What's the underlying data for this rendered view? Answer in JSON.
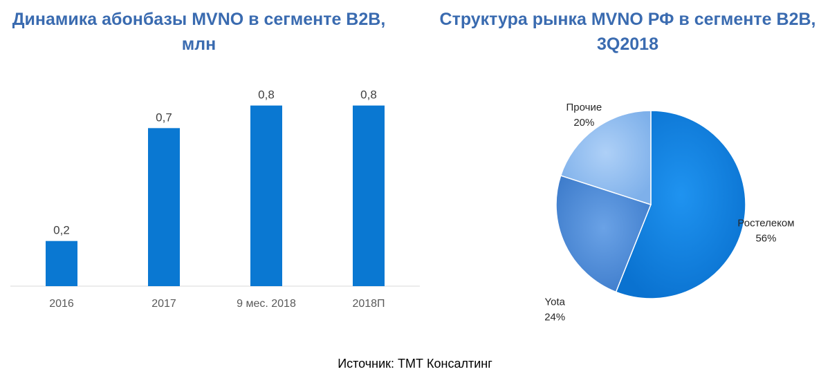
{
  "bar_chart": {
    "title_line1": "Динамика абонбазы MVNO в сегменте B2B,",
    "title_line2": "млн"
  },
  "pie_chart": {
    "title_line1": "Структура рынка MVNO РФ в сегменте B2B,",
    "title_line2": "3Q2018"
  },
  "source": "Источник: ТМТ Консалтинг",
  "colors": {
    "bar": "#0a78d2",
    "title": "#3a6bb0",
    "slice_rostelecom": "#0a7fe0",
    "slice_yota": "#4a86d6",
    "slice_other": "#8cbaf0"
  },
  "chart_data": [
    {
      "type": "bar",
      "title": "Динамика абонбазы MVNO в сегменте B2B, млн",
      "categories": [
        "2016",
        "2017",
        "9 мес. 2018",
        "2018П"
      ],
      "values": [
        0.2,
        0.7,
        0.8,
        0.8
      ],
      "data_labels": [
        "0,2",
        "0,7",
        "0,8",
        "0,8"
      ],
      "ylim": [
        0,
        0.9
      ],
      "grid": false,
      "legend": "none"
    },
    {
      "type": "pie",
      "title": "Структура рынка MVNO РФ в сегменте B2B, 3Q2018",
      "slices": [
        {
          "name": "Ростелеком",
          "value": 56,
          "label": "56%"
        },
        {
          "name": "Yota",
          "value": 24,
          "label": "24%"
        },
        {
          "name": "Прочие",
          "value": 20,
          "label": "20%"
        }
      ],
      "legend": "none"
    }
  ]
}
